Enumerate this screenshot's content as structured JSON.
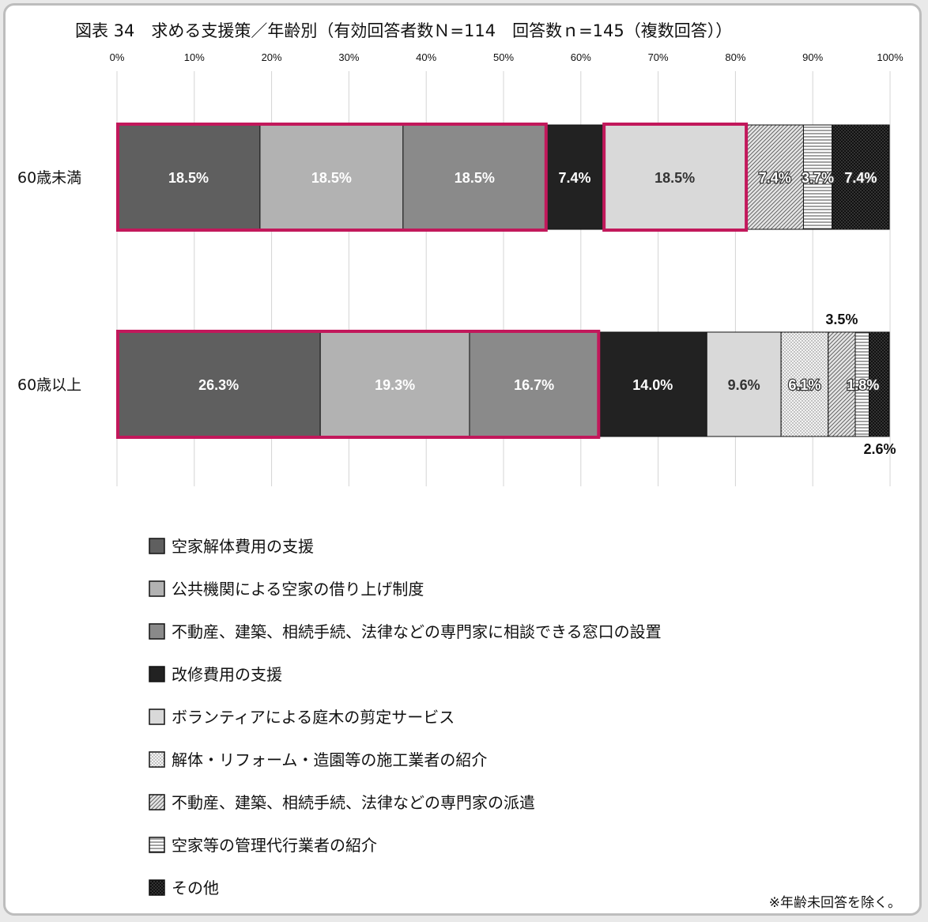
{
  "chart_data": {
    "type": "bar",
    "orientation": "horizontal",
    "stacked": "100%",
    "title": "図表 34　求める支援策／年齢別（有効回答者数Ｎ=114　回答数ｎ=145（複数回答））",
    "xlim": [
      0,
      100
    ],
    "x_ticks": [
      "0%",
      "10%",
      "20%",
      "30%",
      "40%",
      "50%",
      "60%",
      "70%",
      "80%",
      "90%",
      "100%"
    ],
    "categories": [
      "60歳未満",
      "60歳以上"
    ],
    "series": [
      {
        "name": "空家解体費用の支援",
        "values": [
          18.5,
          26.3
        ],
        "labels": [
          "18.5%",
          "26.3%"
        ],
        "color": "#5f5f5f",
        "pattern": "solid"
      },
      {
        "name": "公共機関による空家の借り上げ制度",
        "values": [
          18.5,
          19.3
        ],
        "labels": [
          "18.5%",
          "19.3%"
        ],
        "color": "#b2b2b2",
        "pattern": "solid"
      },
      {
        "name": "不動産、建築、相続手続、法律などの専門家に相談できる窓口の設置",
        "values": [
          18.5,
          16.7
        ],
        "labels": [
          "18.5%",
          "16.7%"
        ],
        "color": "#8a8a8a",
        "pattern": "solid"
      },
      {
        "name": "改修費用の支援",
        "values": [
          7.4,
          14.0
        ],
        "labels": [
          "7.4%",
          "14.0%"
        ],
        "color": "#222222",
        "pattern": "solid"
      },
      {
        "name": "ボランティアによる庭木の剪定サービス",
        "values": [
          18.5,
          9.6
        ],
        "labels": [
          "18.5%",
          "9.6%"
        ],
        "color": "#d9d9d9",
        "pattern": "solid"
      },
      {
        "name": "解体・リフォーム・造園等の施工業者の紹介",
        "values": [
          0,
          6.1
        ],
        "labels": [
          "",
          "6.1%"
        ],
        "color": "#f0f0f0",
        "pattern": "dots"
      },
      {
        "name": "不動産、建築、相続手続、法律などの専門家の派遣",
        "values": [
          7.4,
          3.5
        ],
        "labels": [
          "7.4%",
          "3.5%"
        ],
        "color": "#cfcfcf",
        "pattern": "diagonal"
      },
      {
        "name": "空家等の管理代行業者の紹介",
        "values": [
          3.7,
          1.8
        ],
        "labels": [
          "3.7%",
          "1.8%"
        ],
        "color": "#ffffff",
        "pattern": "hlines"
      },
      {
        "name": "その他",
        "values": [
          7.4,
          2.6
        ],
        "labels": [
          "7.4%",
          "2.6%"
        ],
        "color": "#1a1a1a",
        "pattern": "darkdots"
      }
    ],
    "highlight_color": "#c2185b",
    "highlight_groups": [
      {
        "category": "60歳未満",
        "series_from": 0,
        "series_to": 2
      },
      {
        "category": "60歳未満",
        "series_from": 4,
        "series_to": 4
      },
      {
        "category": "60歳以上",
        "series_from": 0,
        "series_to": 2
      }
    ],
    "legend_position": "bottom-left",
    "grid": true
  },
  "note": "※年齢未回答を除く。"
}
